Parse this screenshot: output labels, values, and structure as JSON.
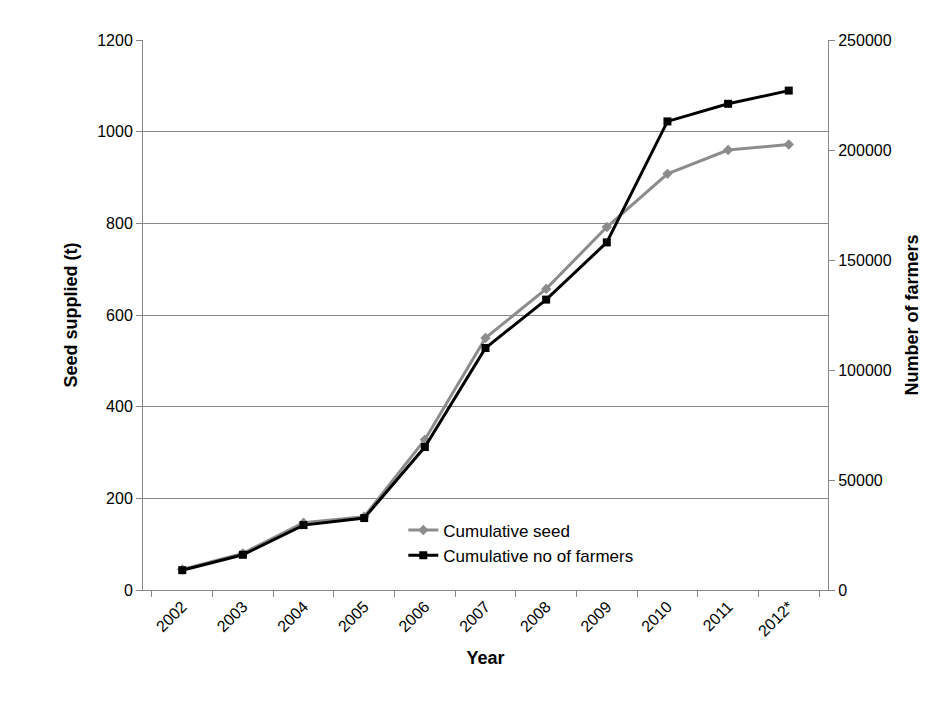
{
  "chart_data": {
    "type": "line",
    "x_label": "Year",
    "y_label": "Seed supplied (t)",
    "y2_label": "Number of farmers",
    "categories": [
      "2002",
      "2003",
      "2004",
      "2005",
      "2006",
      "2007",
      "2008",
      "2009",
      "2010",
      "2011",
      "2012*"
    ],
    "ylim": [
      0,
      1200
    ],
    "yticks": [
      0,
      200,
      400,
      600,
      800,
      1000,
      1200
    ],
    "y2lim": [
      0,
      250000
    ],
    "y2ticks": [
      0,
      50000,
      100000,
      150000,
      200000,
      250000
    ],
    "grid": true,
    "legend": "bottom right",
    "series": [
      {
        "name": "Cumulative seed",
        "color": "#8c8c8c",
        "marker": "diamond",
        "line_style": "solid",
        "values": [
          45,
          80,
          147,
          160,
          328,
          550,
          657,
          792,
          908,
          960,
          972
        ]
      },
      {
        "name": "Cumulative no of farmers",
        "color": "#000000",
        "marker": "square",
        "line_style": "solid",
        "axis": "y2",
        "values": [
          9000,
          16000,
          29500,
          32700,
          65000,
          110000,
          132000,
          158000,
          213000,
          221000,
          227000
        ]
      }
    ]
  }
}
